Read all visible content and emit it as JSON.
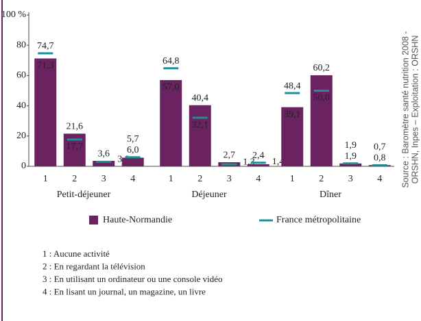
{
  "chart_data": {
    "type": "bar",
    "groups": [
      "Petit-déjeuner",
      "Déjeuner",
      "Dîner"
    ],
    "subcategories": [
      "1",
      "2",
      "3",
      "4"
    ],
    "series": [
      {
        "name": "Haute-Normandie",
        "color": "#6a2360",
        "marker": "bar",
        "values": [
          [
            71.3,
            21.6,
            3.6,
            5.7
          ],
          [
            57.0,
            40.4,
            2.7,
            1.4
          ],
          [
            39.1,
            60.2,
            1.9,
            0.8
          ]
        ],
        "value_labels": [
          [
            "71,3",
            "21,6",
            "3,6",
            "5,7"
          ],
          [
            "57,0",
            "40,4",
            "2,7",
            "1,4"
          ],
          [
            "39,1",
            "60,2",
            "1,9",
            "0,8"
          ]
        ]
      },
      {
        "name": "France métropolitaine",
        "color": "#1f8f96",
        "marker": "dash",
        "values": [
          [
            74.7,
            17.7,
            3.0,
            6.0
          ],
          [
            64.8,
            32.1,
            1.3,
            2.4
          ],
          [
            48.4,
            50.0,
            1.9,
            0.7
          ]
        ],
        "value_labels": [
          [
            "74,7",
            "17,7",
            "3,0",
            "6,0"
          ],
          [
            "64,8",
            "32,1",
            "1,3",
            "2,4"
          ],
          [
            "48,4",
            "50,0",
            "1,9",
            "0,7"
          ]
        ]
      }
    ],
    "ylim": [
      0,
      100
    ],
    "yticks": [
      0,
      20,
      40,
      60,
      80,
      {
        "value": 100,
        "label": "100 %"
      }
    ],
    "source": [
      "Source : Baromètre santé nutrition 2008 -",
      "ORSHN, Inpes – Exploitation : ORSHN"
    ],
    "notes": [
      "1 : Aucune activité",
      "2 : En regardant la télévision",
      "3 : En utilisant un ordinateur ou une console vidéo",
      "4 : En lisant un journal, un magazine, un livre"
    ]
  }
}
